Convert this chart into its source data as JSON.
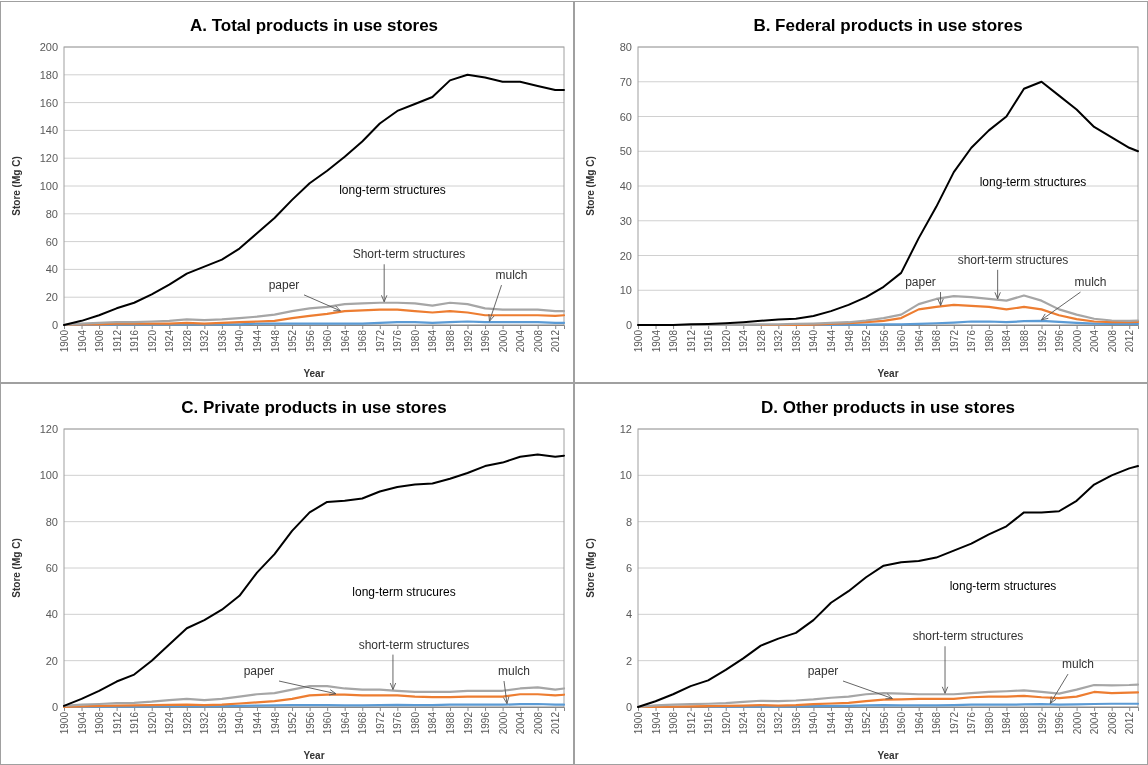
{
  "chart_data": [
    {
      "type": "line",
      "title": "A. Total products in use stores",
      "xlabel": "Year",
      "ylabel": "Store (Mg C)",
      "grid": "y",
      "x": [
        1900,
        1904,
        1908,
        1912,
        1916,
        1920,
        1924,
        1928,
        1932,
        1936,
        1940,
        1944,
        1948,
        1952,
        1956,
        1960,
        1964,
        1968,
        1972,
        1976,
        1980,
        1984,
        1988,
        1992,
        1996,
        2000,
        2004,
        2008,
        2012,
        2014
      ],
      "xlim": [
        1900,
        2014
      ],
      "xticks": [
        1900,
        1904,
        1908,
        1912,
        1916,
        1920,
        1924,
        1928,
        1932,
        1936,
        1940,
        1944,
        1948,
        1952,
        1956,
        1960,
        1964,
        1968,
        1972,
        1976,
        1980,
        1984,
        1988,
        1992,
        1996,
        2000,
        2004,
        2008,
        2012
      ],
      "ylim": [
        0,
        200
      ],
      "yticks": [
        0,
        20,
        40,
        60,
        80,
        100,
        120,
        140,
        160,
        180,
        200
      ],
      "series": [
        {
          "name": "long-term structures",
          "color": "#000000",
          "values": [
            0,
            3,
            7,
            12,
            16,
            22,
            29,
            37,
            42,
            47,
            55,
            66,
            77,
            90,
            102,
            111,
            121,
            132,
            145,
            154,
            159,
            164,
            176,
            180,
            178,
            175,
            175,
            172,
            169,
            169
          ]
        },
        {
          "name": "Short-term structures",
          "color": "#a6a6a6",
          "values": [
            0,
            1,
            1.5,
            2,
            2,
            2.5,
            3,
            4,
            3.5,
            4,
            5,
            6,
            7.5,
            10,
            12,
            13,
            15,
            15.5,
            16,
            16,
            15.5,
            14,
            16,
            15,
            12,
            11,
            11,
            11,
            10,
            10
          ]
        },
        {
          "name": "paper",
          "color": "#ed7d31",
          "values": [
            0,
            0.5,
            0.5,
            1,
            1,
            1,
            1,
            1.5,
            1,
            1.5,
            2,
            2.5,
            3,
            5,
            6.5,
            8,
            10,
            10.5,
            11,
            11,
            10,
            9,
            10,
            9,
            7,
            7,
            7,
            7,
            6.5,
            7
          ]
        },
        {
          "name": "mulch",
          "color": "#5b9bd5",
          "values": [
            0,
            0,
            0,
            0.5,
            0.5,
            0.5,
            0.5,
            0.5,
            0.5,
            0.5,
            0.5,
            1,
            1,
            1,
            1,
            1,
            1,
            1,
            1.5,
            2,
            2,
            1.5,
            2,
            2.5,
            2,
            2,
            2,
            2,
            1.5,
            1.5
          ]
        }
      ]
    },
    {
      "type": "line",
      "title": "B. Federal products in use stores",
      "xlabel": "Year",
      "ylabel": "Store (Mg C)",
      "grid": "y",
      "x": [
        1900,
        1904,
        1908,
        1912,
        1916,
        1920,
        1924,
        1928,
        1932,
        1936,
        1940,
        1944,
        1948,
        1952,
        1956,
        1960,
        1964,
        1968,
        1972,
        1976,
        1980,
        1984,
        1988,
        1992,
        1996,
        2000,
        2004,
        2008,
        2012,
        2014
      ],
      "xlim": [
        1900,
        2014
      ],
      "xticks": [
        1900,
        1904,
        1908,
        1912,
        1916,
        1920,
        1924,
        1928,
        1932,
        1936,
        1940,
        1944,
        1948,
        1952,
        1956,
        1960,
        1964,
        1968,
        1972,
        1976,
        1980,
        1984,
        1988,
        1992,
        1996,
        2000,
        2004,
        2008,
        2012
      ],
      "ylim": [
        0,
        80
      ],
      "yticks": [
        0,
        10,
        20,
        30,
        40,
        50,
        60,
        70,
        80
      ],
      "series": [
        {
          "name": "long-term structures",
          "color": "#000000",
          "values": [
            0,
            0,
            0,
            0.2,
            0.3,
            0.5,
            0.8,
            1.2,
            1.6,
            1.8,
            2.6,
            4,
            5.8,
            8,
            11,
            15,
            25,
            34,
            44,
            51,
            56,
            60,
            68,
            70,
            66,
            62,
            57,
            54,
            51,
            50
          ]
        },
        {
          "name": "short-term structures",
          "color": "#a6a6a6",
          "values": [
            0,
            0,
            0,
            0,
            0,
            0,
            0.1,
            0.2,
            0.2,
            0.3,
            0.4,
            0.6,
            0.8,
            1.3,
            2,
            3,
            6,
            7.5,
            8.3,
            8,
            7.5,
            7,
            8.5,
            7,
            4.5,
            3,
            1.8,
            1.3,
            1.2,
            1.3
          ]
        },
        {
          "name": "paper",
          "color": "#ed7d31",
          "values": [
            null,
            null,
            null,
            null,
            null,
            null,
            null,
            0,
            0,
            0,
            0.1,
            0.3,
            0.5,
            0.8,
            1.2,
            2,
            4.5,
            5.2,
            5.8,
            5.5,
            5.2,
            4.5,
            5.2,
            4.5,
            2.8,
            1.7,
            1,
            0.8,
            0.8,
            0.9
          ]
        },
        {
          "name": "mulch",
          "color": "#5b9bd5",
          "values": [
            null,
            null,
            null,
            null,
            null,
            null,
            null,
            null,
            null,
            0,
            0,
            0,
            0.1,
            0.1,
            0.2,
            0.2,
            0.3,
            0.5,
            0.7,
            1,
            1,
            0.8,
            1.1,
            1.2,
            0.9,
            0.6,
            0.4,
            0.3,
            0.3,
            0.3
          ]
        }
      ]
    },
    {
      "type": "line",
      "title": "C. Private products in use stores",
      "xlabel": "Year",
      "ylabel": "Store (Mg C)",
      "grid": "y",
      "x": [
        1900,
        1904,
        1908,
        1912,
        1916,
        1920,
        1924,
        1928,
        1932,
        1936,
        1940,
        1944,
        1948,
        1952,
        1956,
        1960,
        1964,
        1968,
        1972,
        1976,
        1980,
        1984,
        1988,
        1992,
        1996,
        2000,
        2004,
        2008,
        2012,
        2014
      ],
      "xlim": [
        1900,
        2014
      ],
      "xticks": [
        1900,
        1904,
        1908,
        1912,
        1916,
        1920,
        1924,
        1928,
        1932,
        1936,
        1940,
        1944,
        1948,
        1952,
        1956,
        1960,
        1964,
        1968,
        1972,
        1976,
        1980,
        1984,
        1988,
        1992,
        1996,
        2000,
        2004,
        2008,
        2012
      ],
      "ylim": [
        0,
        120
      ],
      "yticks": [
        0,
        20,
        40,
        60,
        80,
        100,
        120
      ],
      "series": [
        {
          "name": "long-term strucures",
          "color": "#000000",
          "values": [
            0.5,
            3.5,
            7,
            11,
            14,
            20,
            27,
            34,
            37.5,
            42,
            48,
            58,
            66,
            76,
            84,
            88.5,
            89,
            90,
            93,
            95,
            96,
            96.5,
            98.5,
            101,
            104,
            105.5,
            108,
            109,
            108,
            108.5
          ]
        },
        {
          "name": "short-term structures",
          "color": "#a6a6a6",
          "values": [
            0.5,
            1,
            1.3,
            1.7,
            1.8,
            2.3,
            3,
            3.5,
            3,
            3.5,
            4.5,
            5.5,
            6,
            7.5,
            9,
            9,
            8,
            7.5,
            7.5,
            7,
            6.5,
            6.5,
            6.5,
            7,
            7,
            7,
            8,
            8.5,
            7.5,
            8
          ]
        },
        {
          "name": "paper",
          "color": "#ed7d31",
          "values": [
            0,
            0.3,
            0.5,
            0.6,
            0.7,
            0.8,
            0.9,
            1,
            0.8,
            1,
            1.5,
            2,
            2.5,
            3.5,
            5,
            5.3,
            5.3,
            5,
            5,
            5,
            4.5,
            4.3,
            4.3,
            4.5,
            4.5,
            4.5,
            5.5,
            5.5,
            5,
            5.3
          ]
        },
        {
          "name": "mulch",
          "color": "#5b9bd5",
          "values": [
            0,
            0,
            0.1,
            0.2,
            0.2,
            0.3,
            0.4,
            0.4,
            0.3,
            0.4,
            0.5,
            0.6,
            0.7,
            0.8,
            0.8,
            0.8,
            0.7,
            0.7,
            0.8,
            0.9,
            0.8,
            0.8,
            1,
            1,
            1,
            1,
            1.2,
            1.3,
            1,
            1
          ]
        }
      ]
    },
    {
      "type": "line",
      "title": "D. Other products in use stores",
      "xlabel": "Year",
      "ylabel": "Store (Mg C)",
      "grid": "y",
      "x": [
        1900,
        1904,
        1908,
        1912,
        1916,
        1920,
        1924,
        1928,
        1932,
        1936,
        1940,
        1944,
        1948,
        1952,
        1956,
        1960,
        1964,
        1968,
        1972,
        1976,
        1980,
        1984,
        1988,
        1992,
        1996,
        2000,
        2004,
        2008,
        2012,
        2014
      ],
      "xlim": [
        1900,
        2014
      ],
      "xticks": [
        1900,
        1904,
        1908,
        1912,
        1916,
        1920,
        1924,
        1928,
        1932,
        1936,
        1940,
        1944,
        1948,
        1952,
        1956,
        1960,
        1964,
        1968,
        1972,
        1976,
        1980,
        1984,
        1988,
        1992,
        1996,
        2000,
        2004,
        2008,
        2012
      ],
      "ylim": [
        0,
        12
      ],
      "yticks": [
        0,
        2,
        4,
        6,
        8,
        10,
        12
      ],
      "series": [
        {
          "name": "long-term structures",
          "color": "#000000",
          "values": [
            0,
            0.25,
            0.55,
            0.9,
            1.15,
            1.6,
            2.1,
            2.65,
            2.95,
            3.2,
            3.75,
            4.5,
            5,
            5.6,
            6.1,
            6.25,
            6.3,
            6.45,
            6.75,
            7.05,
            7.45,
            7.8,
            8.4,
            8.4,
            8.45,
            8.9,
            9.6,
            10,
            10.3,
            10.4
          ]
        },
        {
          "name": "short-term structures",
          "color": "#a6a6a6",
          "values": [
            0,
            0.07,
            0.1,
            0.12,
            0.14,
            0.17,
            0.22,
            0.27,
            0.25,
            0.28,
            0.33,
            0.4,
            0.45,
            0.55,
            0.6,
            0.58,
            0.55,
            0.55,
            0.55,
            0.6,
            0.65,
            0.68,
            0.72,
            0.65,
            0.58,
            0.75,
            0.95,
            0.93,
            0.95,
            0.97
          ]
        },
        {
          "name": "paper",
          "color": "#ed7d31",
          "values": [
            0,
            0,
            0.02,
            0.03,
            0.04,
            0.05,
            0.06,
            0.08,
            0.06,
            0.08,
            0.12,
            0.15,
            0.18,
            0.25,
            0.32,
            0.33,
            0.35,
            0.35,
            0.35,
            0.42,
            0.45,
            0.45,
            0.48,
            0.42,
            0.38,
            0.45,
            0.65,
            0.6,
            0.62,
            0.63
          ]
        },
        {
          "name": "mulch",
          "color": "#5b9bd5",
          "values": [
            null,
            null,
            null,
            null,
            0.01,
            0.01,
            0.02,
            0.02,
            0.02,
            0.03,
            0.04,
            0.05,
            0.05,
            0.07,
            0.08,
            0.07,
            0.07,
            0.07,
            0.08,
            0.1,
            0.1,
            0.1,
            0.11,
            0.12,
            0.1,
            0.11,
            0.13,
            0.14,
            0.14,
            0.14
          ]
        }
      ]
    }
  ]
}
